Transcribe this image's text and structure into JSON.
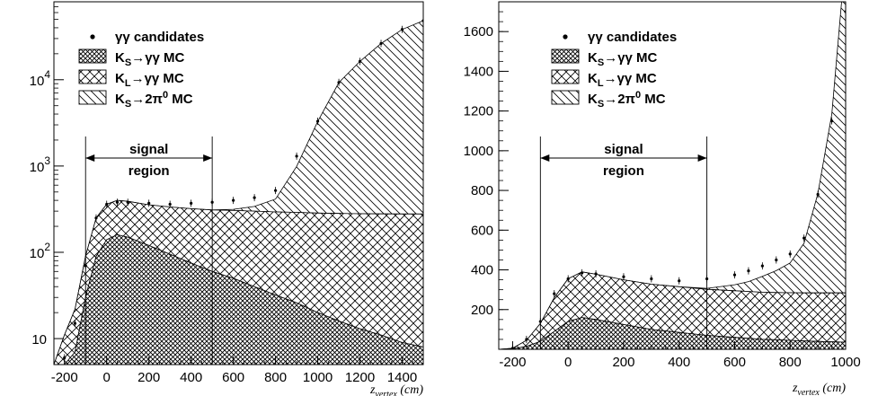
{
  "chart_data": [
    {
      "type": "area",
      "yscale": "log",
      "xlim": [
        -250,
        1500
      ],
      "ylim": [
        5,
        80000
      ],
      "x_ticks": [
        "-200",
        "0",
        "200",
        "400",
        "600",
        "800",
        "1000",
        "1200",
        "1400"
      ],
      "y_ticks": [
        {
          "value": 10,
          "base": "10",
          "exp": ""
        },
        {
          "value": 100,
          "base": "10",
          "exp": "2"
        },
        {
          "value": 1000,
          "base": "10",
          "exp": "3"
        },
        {
          "value": 10000,
          "base": "10",
          "exp": "4"
        }
      ],
      "xlabel_main": "z",
      "xlabel_sub": "vertex",
      "xlabel_unit": "(cm)",
      "legend": [
        {
          "label": "γγ candidates",
          "style": "marker"
        },
        {
          "label": "K",
          "sub": "S",
          "tail": "→γγ MC",
          "style": "dense-hatch"
        },
        {
          "label": "K",
          "sub": "L",
          "tail": "→γγ MC",
          "style": "crosshatch"
        },
        {
          "label": "K",
          "sub": "S",
          "tail": "→2π",
          "sup": "0",
          "tail2": " MC",
          "style": "backslash-hatch"
        }
      ],
      "annotation": {
        "line1": "signal",
        "line2": "region",
        "x_range": [
          -100,
          500
        ]
      },
      "x": [
        -250,
        -200,
        -150,
        -100,
        -50,
        0,
        50,
        100,
        200,
        300,
        400,
        500,
        600,
        700,
        800,
        900,
        1000,
        1100,
        1200,
        1300,
        1400,
        1500
      ],
      "series": [
        {
          "name": "KS→γγ MC",
          "values": [
            0,
            5,
            7,
            30,
            90,
            140,
            160,
            150,
            120,
            95,
            75,
            60,
            50,
            40,
            32,
            26,
            20,
            16,
            13,
            11,
            9,
            8
          ]
        },
        {
          "name": "KL→γγ MC",
          "values": [
            0,
            6,
            15,
            60,
            160,
            220,
            240,
            240,
            235,
            240,
            245,
            250,
            255,
            260,
            262,
            264,
            265,
            266,
            267,
            268,
            269,
            270
          ]
        },
        {
          "name": "KS→2π0 MC",
          "values": [
            0,
            0,
            0,
            0,
            0,
            0,
            0,
            0,
            0,
            0,
            0,
            0,
            10,
            40,
            120,
            700,
            3000,
            9000,
            16000,
            26000,
            38000,
            48000
          ]
        },
        {
          "name": "γγ candidates",
          "values": [
            0,
            6,
            15,
            70,
            250,
            360,
            380,
            380,
            370,
            360,
            370,
            380,
            400,
            430,
            520,
            1300,
            3300,
            9300,
            16300,
            26300,
            38300,
            48300
          ]
        }
      ]
    },
    {
      "type": "area",
      "yscale": "linear",
      "xlim": [
        -250,
        1000
      ],
      "ylim": [
        0,
        1750
      ],
      "x_ticks": [
        "-200",
        "0",
        "200",
        "400",
        "600",
        "800",
        "1000"
      ],
      "y_ticks": [
        "200",
        "400",
        "600",
        "800",
        "1000",
        "1200",
        "1400",
        "1600"
      ],
      "xlabel_main": "z",
      "xlabel_sub": "vertex",
      "xlabel_unit": "(cm)",
      "legend": [
        {
          "label": "γγ candidates",
          "style": "marker"
        },
        {
          "label": "K",
          "sub": "S",
          "tail": "→γγ MC",
          "style": "dense-hatch"
        },
        {
          "label": "K",
          "sub": "L",
          "tail": "→γγ MC",
          "style": "crosshatch"
        },
        {
          "label": "K",
          "sub": "S",
          "tail": "→2π",
          "sup": "0",
          "tail2": " MC",
          "style": "backslash-hatch"
        }
      ],
      "annotation": {
        "line1": "signal",
        "line2": "region",
        "x_range": [
          -100,
          500
        ]
      },
      "x": [
        -250,
        -200,
        -150,
        -100,
        -50,
        0,
        50,
        100,
        200,
        300,
        400,
        500,
        600,
        650,
        700,
        750,
        800,
        850,
        900,
        950,
        1000
      ],
      "series": [
        {
          "name": "KS→γγ MC",
          "values": [
            0,
            2,
            15,
            40,
            90,
            140,
            160,
            150,
            125,
            100,
            85,
            70,
            60,
            55,
            50,
            48,
            45,
            42,
            40,
            38,
            36
          ]
        },
        {
          "name": "KL→γγ MC",
          "values": [
            0,
            3,
            30,
            90,
            170,
            215,
            230,
            228,
            225,
            228,
            230,
            232,
            235,
            236,
            237,
            238,
            240,
            242,
            244,
            246,
            248
          ]
        },
        {
          "name": "KS→2π0 MC",
          "values": [
            0,
            0,
            0,
            0,
            0,
            0,
            0,
            0,
            0,
            0,
            0,
            5,
            30,
            50,
            80,
            110,
            150,
            250,
            500,
            900,
            1700
          ]
        },
        {
          "name": "γγ candidates",
          "values": [
            0,
            5,
            50,
            140,
            280,
            355,
            385,
            380,
            365,
            355,
            345,
            355,
            375,
            395,
            420,
            450,
            480,
            560,
            780,
            1150,
            1700
          ]
        }
      ]
    }
  ]
}
